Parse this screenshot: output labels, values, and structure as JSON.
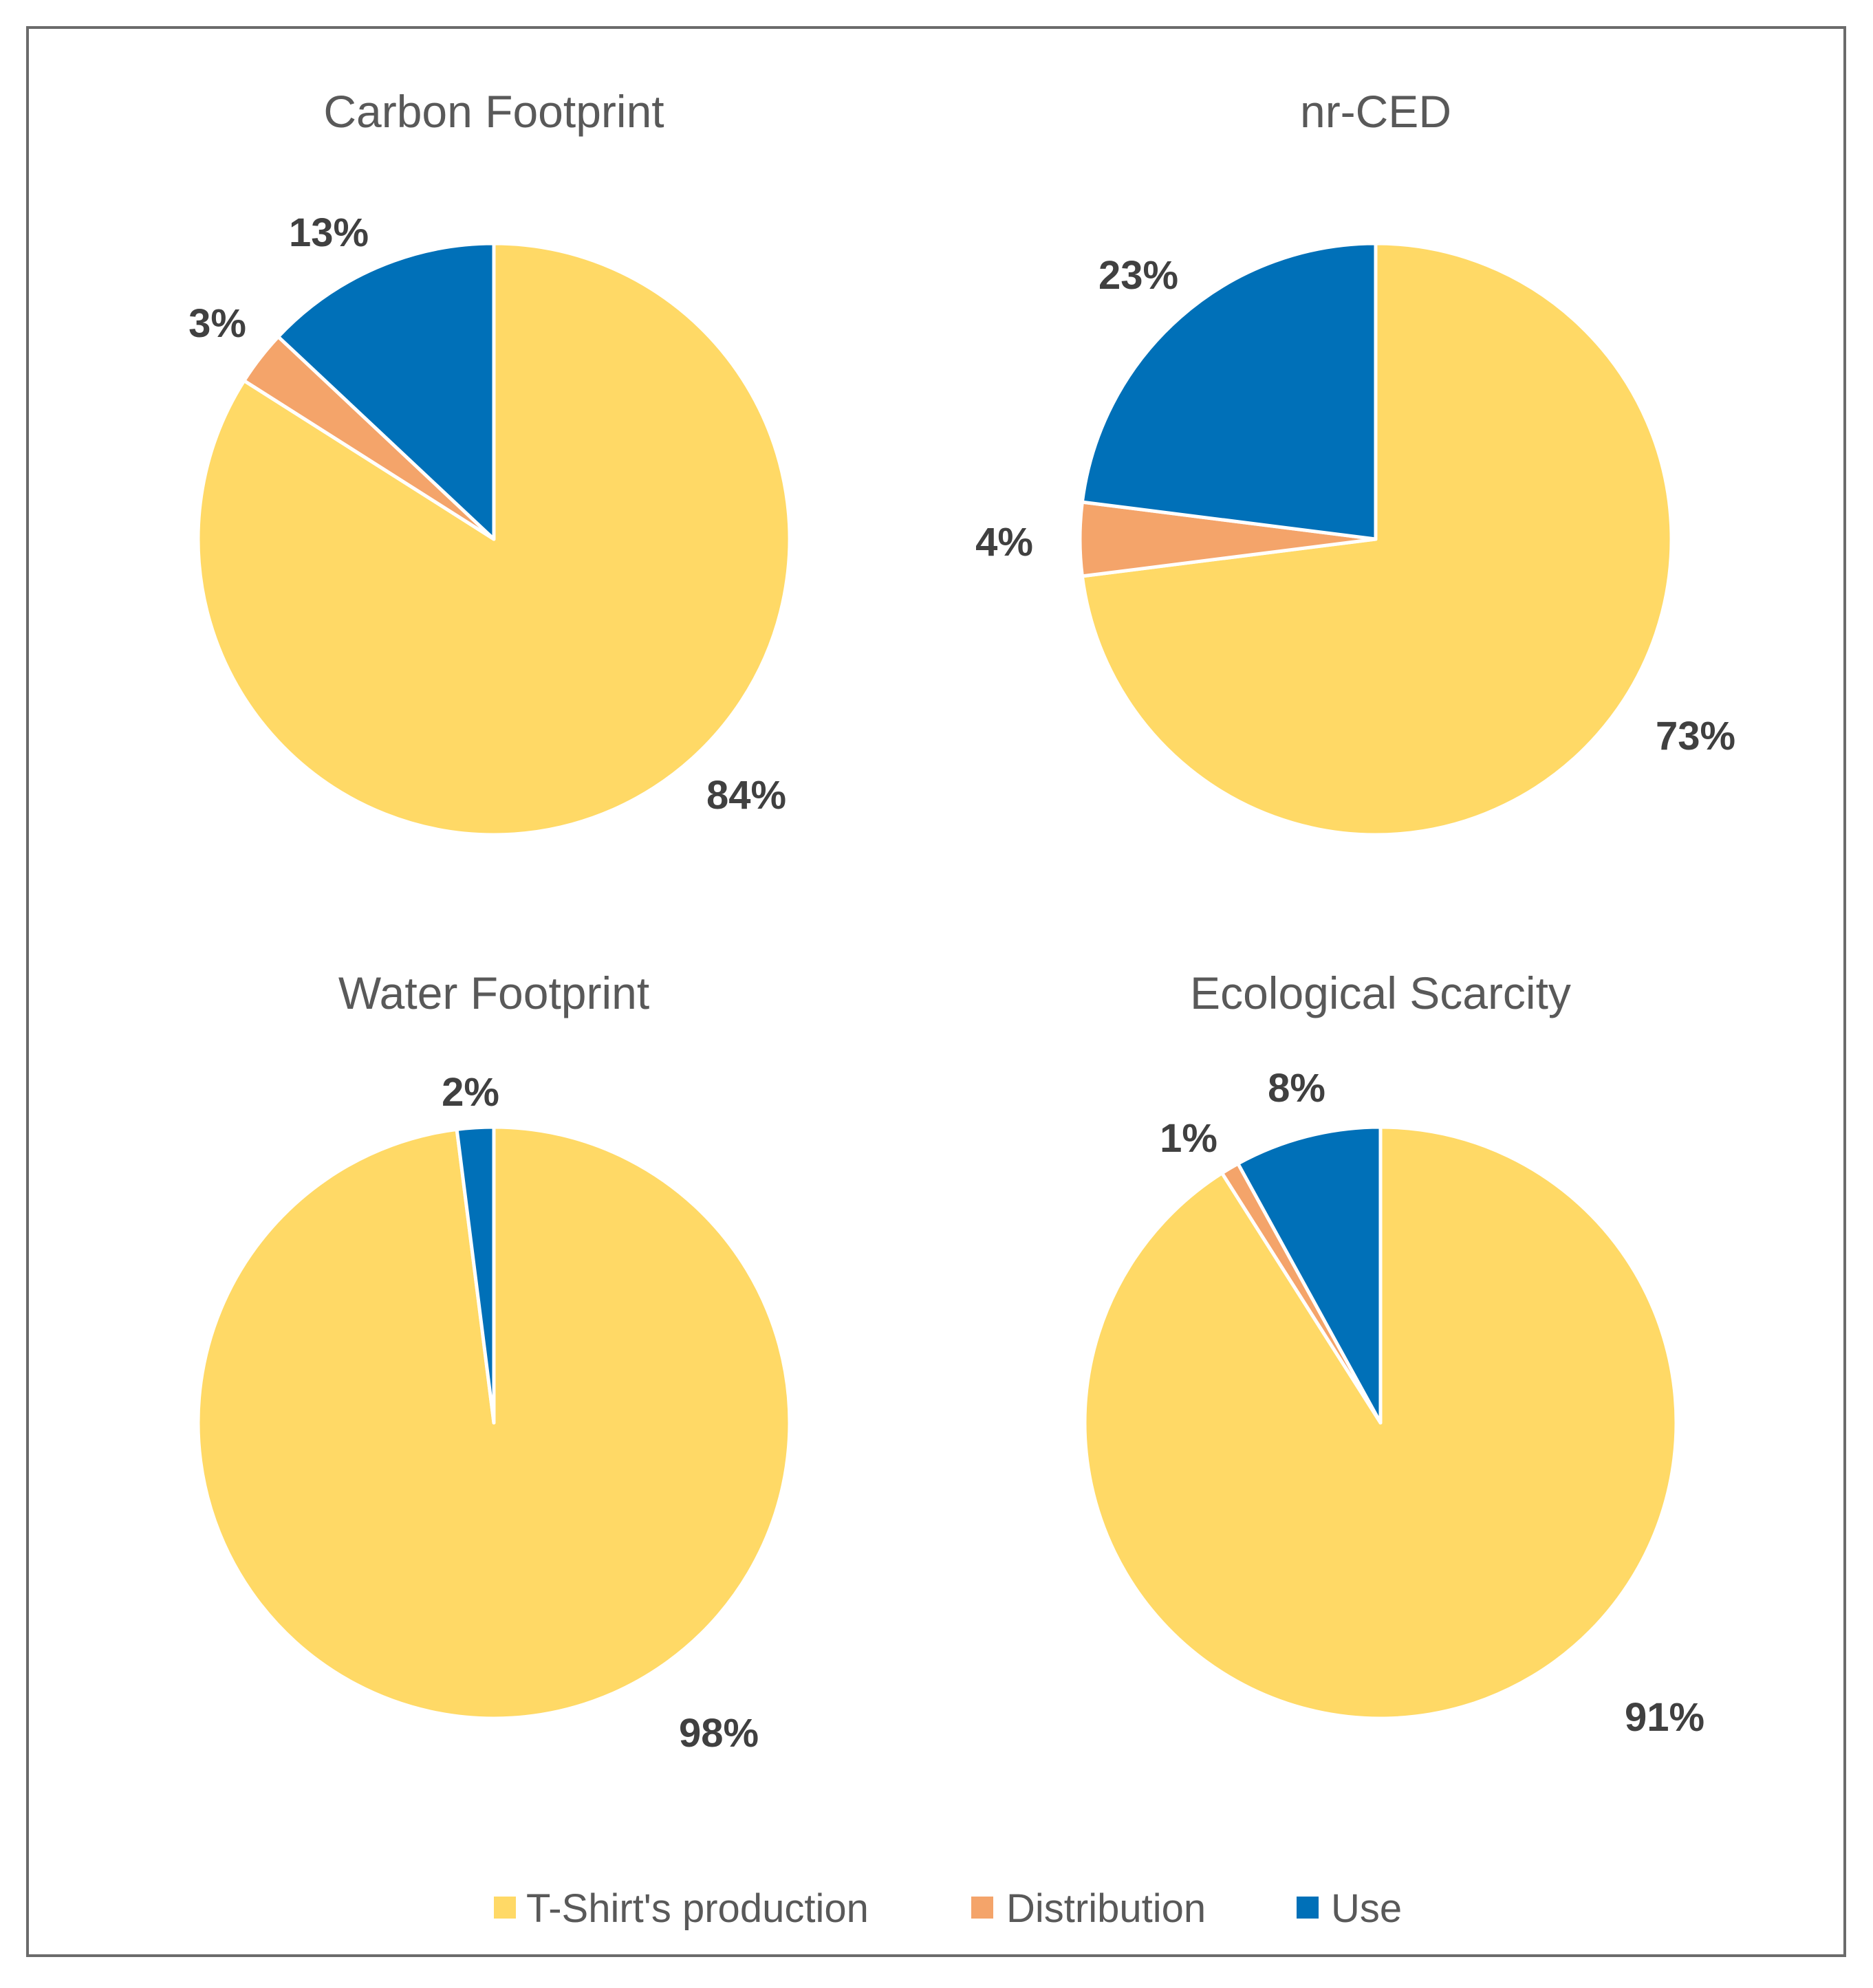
{
  "chart_data": [
    {
      "type": "pie",
      "title": "Carbon Footprint",
      "labels": [
        "T-Shirt's production",
        "Distribution",
        "Use"
      ],
      "values": [
        84,
        3,
        13
      ],
      "data_labels": [
        "84%",
        "3%",
        "13%"
      ]
    },
    {
      "type": "pie",
      "title": "nr-CED",
      "labels": [
        "T-Shirt's production",
        "Distribution",
        "Use"
      ],
      "values": [
        73,
        4,
        23
      ],
      "data_labels": [
        "73%",
        "4%",
        "23%"
      ]
    },
    {
      "type": "pie",
      "title": "Water Footprint",
      "labels": [
        "T-Shirt's production",
        "Distribution",
        "Use"
      ],
      "values": [
        98,
        0,
        2
      ],
      "data_labels": [
        "98%",
        "",
        "2%"
      ]
    },
    {
      "type": "pie",
      "title": "Ecological Scarcity",
      "labels": [
        "T-Shirt's production",
        "Distribution",
        "Use"
      ],
      "values": [
        91,
        1,
        8
      ],
      "data_labels": [
        "91%",
        "1%",
        "8%"
      ]
    }
  ],
  "legend": {
    "items": [
      {
        "label": "T-Shirt's production",
        "color": "#FFD966"
      },
      {
        "label": "Distribution",
        "color": "#F4A46A"
      },
      {
        "label": "Use",
        "color": "#0070B8"
      }
    ]
  },
  "colors": {
    "production": "#FFD966",
    "distribution": "#F4A46A",
    "use": "#0070B8"
  }
}
